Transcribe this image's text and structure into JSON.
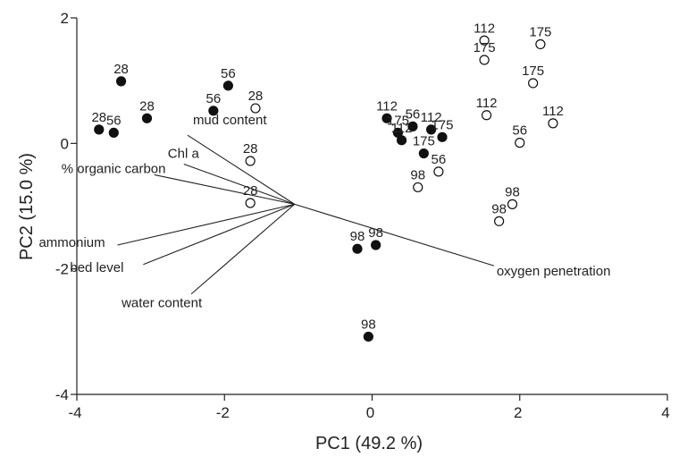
{
  "chart_data": {
    "type": "scatter",
    "xlabel": "PC1 (49.2 %)",
    "ylabel": "PC2 (15.0 %)",
    "xlim": [
      -4,
      4
    ],
    "ylim": [
      -4,
      2
    ],
    "x_ticks": [
      "-4",
      "-2",
      "0",
      "2",
      "4"
    ],
    "y_ticks": [
      "2",
      "0",
      "-2",
      "-4"
    ],
    "marker_fill": {
      "filled": "#111111",
      "open": "#ffffff"
    },
    "points": [
      {
        "x": -3.4,
        "y": 0.99,
        "filled": true,
        "label": "28"
      },
      {
        "x": -3.05,
        "y": 0.4,
        "filled": true,
        "label": "28"
      },
      {
        "x": -3.7,
        "y": 0.22,
        "filled": true,
        "label": "28"
      },
      {
        "x": -3.5,
        "y": 0.17,
        "filled": true,
        "label": "56"
      },
      {
        "x": -1.95,
        "y": 0.92,
        "filled": true,
        "label": "56"
      },
      {
        "x": -2.15,
        "y": 0.52,
        "filled": true,
        "label": "56"
      },
      {
        "x": -1.58,
        "y": 0.56,
        "filled": false,
        "label": "28"
      },
      {
        "x": -1.65,
        "y": -0.28,
        "filled": false,
        "label": "28"
      },
      {
        "x": -1.65,
        "y": -0.95,
        "filled": false,
        "label": "28"
      },
      {
        "x": 0.2,
        "y": 0.4,
        "filled": true,
        "label": "112"
      },
      {
        "x": 0.35,
        "y": 0.17,
        "filled": true,
        "label": "175"
      },
      {
        "x": 0.4,
        "y": 0.05,
        "filled": true,
        "label": "112"
      },
      {
        "x": 0.55,
        "y": 0.27,
        "filled": true,
        "label": "56"
      },
      {
        "x": 0.8,
        "y": 0.22,
        "filled": true,
        "label": "112"
      },
      {
        "x": 0.95,
        "y": 0.1,
        "filled": true,
        "label": "175"
      },
      {
        "x": 0.7,
        "y": -0.16,
        "filled": true,
        "label": "175"
      },
      {
        "x": 0.9,
        "y": -0.45,
        "filled": false,
        "label": "56"
      },
      {
        "x": 0.62,
        "y": -0.7,
        "filled": false,
        "label": "98"
      },
      {
        "x": -0.2,
        "y": -1.68,
        "filled": true,
        "label": "98"
      },
      {
        "x": 0.05,
        "y": -1.62,
        "filled": true,
        "label": "98"
      },
      {
        "x": -0.05,
        "y": -3.08,
        "filled": true,
        "label": "98"
      },
      {
        "x": 1.52,
        "y": 1.64,
        "filled": false,
        "label": "112"
      },
      {
        "x": 1.52,
        "y": 1.33,
        "filled": false,
        "label": "175"
      },
      {
        "x": 2.28,
        "y": 1.58,
        "filled": false,
        "label": "175"
      },
      {
        "x": 2.18,
        "y": 0.96,
        "filled": false,
        "label": "175"
      },
      {
        "x": 1.55,
        "y": 0.45,
        "filled": false,
        "label": "112"
      },
      {
        "x": 2.45,
        "y": 0.32,
        "filled": false,
        "label": "112"
      },
      {
        "x": 2.0,
        "y": 0.01,
        "filled": false,
        "label": "56"
      },
      {
        "x": 1.9,
        "y": -0.97,
        "filled": false,
        "label": "98"
      },
      {
        "x": 1.72,
        "y": -1.24,
        "filled": false,
        "label": "98"
      }
    ],
    "vector_origin": {
      "x": -1.05,
      "y": -0.97
    },
    "vectors": [
      {
        "name": "mud content",
        "x": -2.5,
        "y": 0.13
      },
      {
        "name": "Chl a",
        "x": -2.55,
        "y": -0.33
      },
      {
        "name": "% organic carbon",
        "x": -2.95,
        "y": -0.5
      },
      {
        "name": "ammonium",
        "x": -3.45,
        "y": -1.62
      },
      {
        "name": "bed level",
        "x": -3.1,
        "y": -1.93
      },
      {
        "name": "water content",
        "x": -2.45,
        "y": -2.4
      },
      {
        "name": "oxygen penetration",
        "x": 1.65,
        "y": -1.95
      }
    ]
  }
}
